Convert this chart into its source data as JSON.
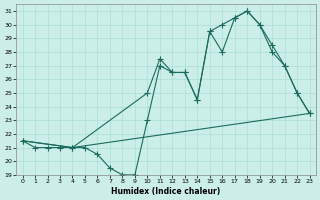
{
  "xlabel": "Humidex (Indice chaleur)",
  "xlim": [
    -0.5,
    23.5
  ],
  "ylim": [
    19,
    31.5
  ],
  "yticks": [
    19,
    20,
    21,
    22,
    23,
    24,
    25,
    26,
    27,
    28,
    29,
    30,
    31
  ],
  "xticks": [
    0,
    1,
    2,
    3,
    4,
    5,
    6,
    7,
    8,
    9,
    10,
    11,
    12,
    13,
    14,
    15,
    16,
    17,
    18,
    19,
    20,
    21,
    22,
    23
  ],
  "bg_color": "#cceee8",
  "grid_color": "#aaddd8",
  "line_color": "#1a6b5e",
  "line1_x": [
    0,
    1,
    2,
    3,
    4,
    5,
    6,
    7,
    8,
    9,
    10,
    11,
    12,
    13,
    14,
    15,
    16,
    17,
    18,
    19,
    20,
    21,
    22,
    23
  ],
  "line1_y": [
    21.5,
    21.0,
    21.0,
    21.0,
    21.0,
    21.0,
    20.5,
    19.5,
    19.0,
    19.0,
    23.0,
    27.0,
    26.5,
    26.5,
    24.5,
    29.5,
    30.0,
    30.5,
    31.0,
    30.0,
    28.0,
    27.0,
    25.0,
    23.5
  ],
  "line2_x": [
    0,
    4,
    10,
    11,
    12,
    13,
    14,
    15,
    16,
    17,
    18,
    19,
    20,
    21,
    22,
    23
  ],
  "line2_y": [
    21.5,
    21.0,
    25.0,
    27.5,
    26.5,
    26.5,
    24.5,
    29.5,
    28.0,
    30.5,
    31.0,
    30.0,
    28.5,
    27.0,
    25.0,
    23.5
  ],
  "line3_x": [
    0,
    4,
    23
  ],
  "line3_y": [
    21.5,
    21.0,
    23.5
  ]
}
